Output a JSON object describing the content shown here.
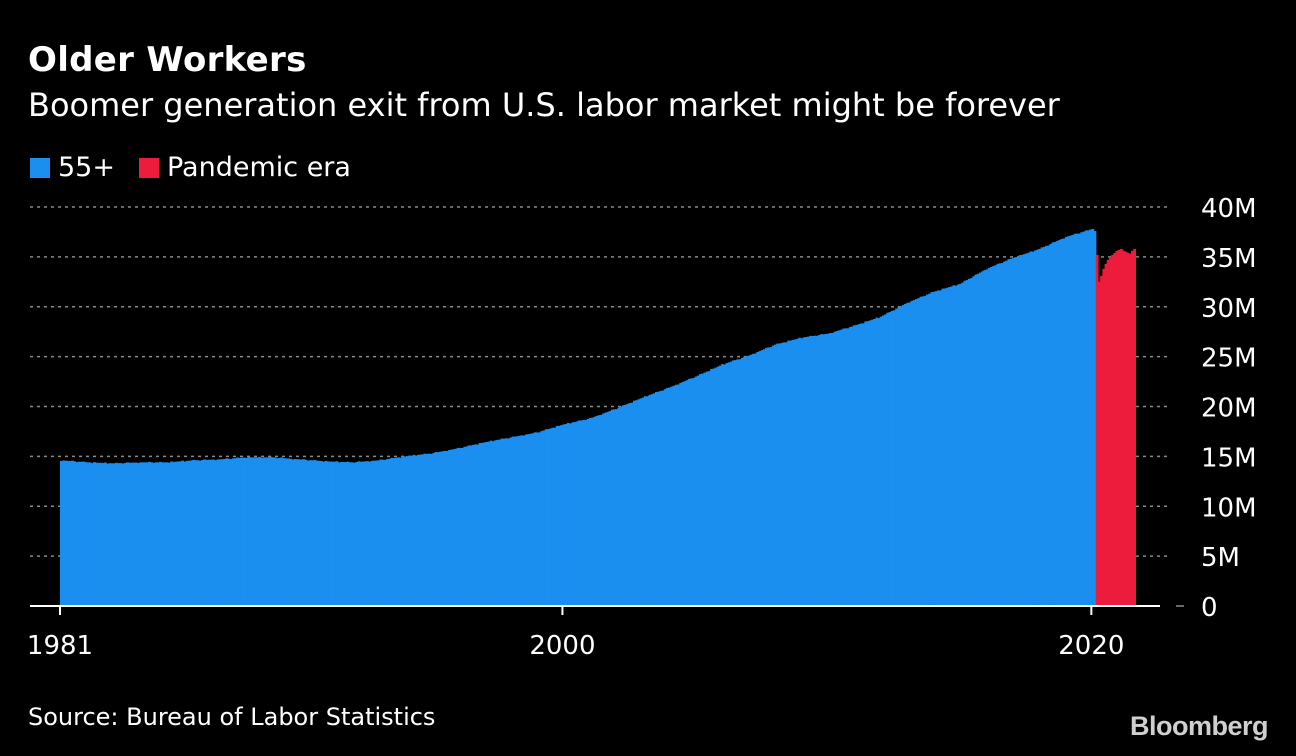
{
  "title": "Older Workers",
  "subtitle": "Boomer generation exit from U.S. labor market might be forever",
  "legend": [
    {
      "label": "55+",
      "color": "#1b8ff0"
    },
    {
      "label": "Pandemic era",
      "color": "#ee1c3c"
    }
  ],
  "source": "Source: Bureau of Labor Statistics",
  "brand": "Bloomberg",
  "colors": {
    "background": "#000000",
    "grid": "#8a8a8a",
    "axis": "#ffffff",
    "text": "#ffffff"
  },
  "chart_data": {
    "type": "bar",
    "title": "Older Workers",
    "subtitle": "Boomer generation exit from U.S. labor market might be forever",
    "frequency": "monthly",
    "xlim": [
      1981,
      2021.5
    ],
    "x_ticks": [
      {
        "value": 1981,
        "label": "1981"
      },
      {
        "value": 2000,
        "label": "2000"
      },
      {
        "value": 2020,
        "label": "2020"
      }
    ],
    "ylim": [
      0,
      40000000
    ],
    "y_ticks": [
      {
        "value": 0,
        "label": "0"
      },
      {
        "value": 5000000,
        "label": "5M"
      },
      {
        "value": 10000000,
        "label": "10M"
      },
      {
        "value": 15000000,
        "label": "15M"
      },
      {
        "value": 20000000,
        "label": "20M"
      },
      {
        "value": 25000000,
        "label": "25M"
      },
      {
        "value": 30000000,
        "label": "30M"
      },
      {
        "value": 35000000,
        "label": "35M"
      },
      {
        "value": 40000000,
        "label": "40M"
      }
    ],
    "grid": "horizontal dashed",
    "legend_position": "top-left",
    "series": [
      {
        "name": "55+",
        "color": "#1b8ff0",
        "start": "1981-01",
        "annual_values_millions": [
          14.6,
          14.4,
          14.3,
          14.4,
          14.4,
          14.6,
          14.7,
          14.9,
          14.9,
          14.7,
          14.5,
          14.4,
          14.6,
          15.0,
          15.3,
          15.8,
          16.4,
          16.9,
          17.4,
          18.2,
          18.8,
          19.8,
          20.9,
          21.9,
          23.0,
          24.2,
          25.1,
          26.2,
          26.9,
          27.3,
          28.1,
          29.0,
          30.4,
          31.5,
          32.3,
          33.8,
          34.9,
          35.8,
          37.0,
          37.8
        ],
        "values_millions_monthly_2020_01_to_2020_02": [
          37.8,
          37.6
        ]
      },
      {
        "name": "Pandemic era",
        "color": "#ee1c3c",
        "start": "2020-03",
        "values_millions_monthly": [
          35.2,
          32.5,
          33.1,
          33.8,
          34.3,
          34.7,
          35.0,
          35.2,
          35.4,
          35.6,
          35.7,
          35.8,
          35.6,
          35.5,
          35.4,
          35.3,
          35.6,
          35.8
        ]
      }
    ]
  }
}
